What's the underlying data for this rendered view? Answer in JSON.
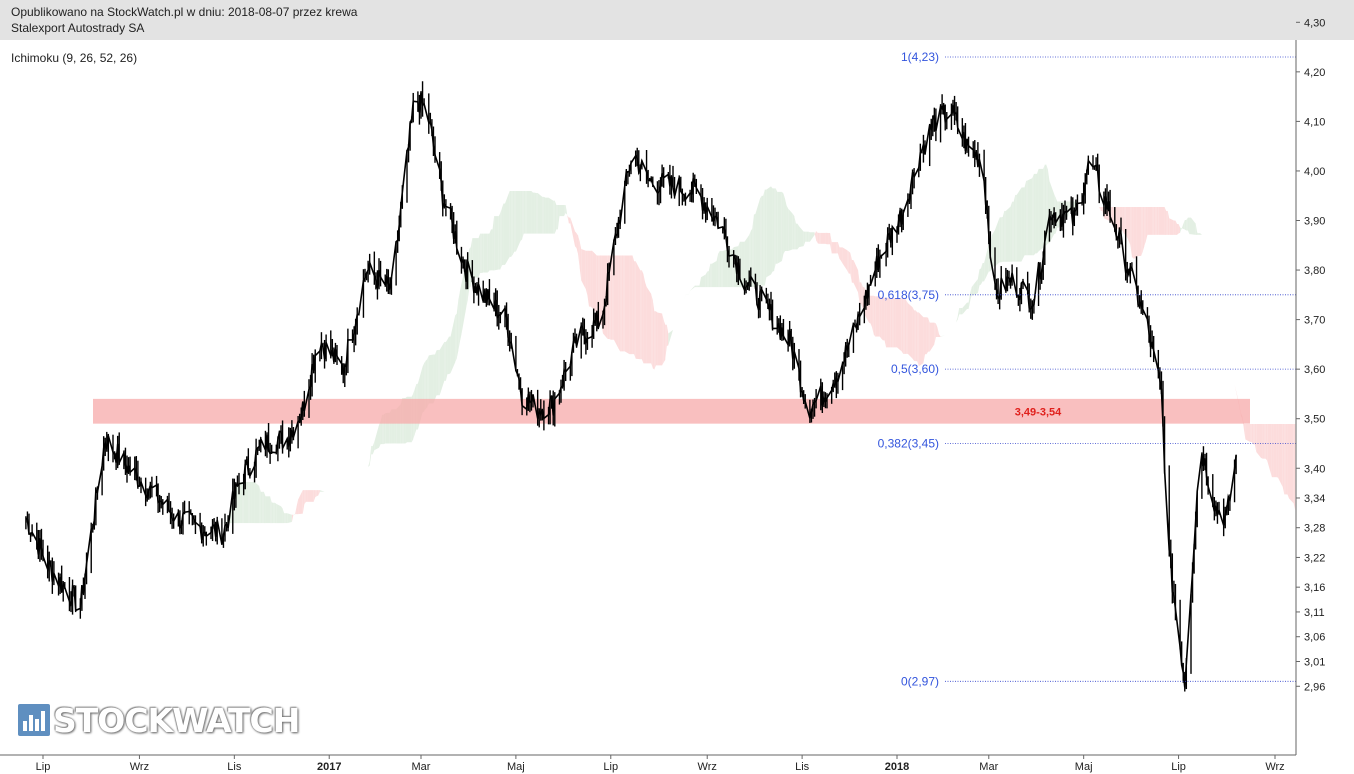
{
  "header": {
    "line1": "Opublikowano na StockWatch.pl w dniu: 2018-08-07 przez krewa",
    "line2": "Stalexport Autostrady SA"
  },
  "indicator": "Ichimoku (9, 26, 52, 26)",
  "logo": "STOCKWATCH",
  "colors": {
    "price": "#000000",
    "cloud_bull": "#e3efe3",
    "cloud_bear": "#fcdcdc",
    "zone": "#f7a9a9",
    "fib_line": "#3344cc",
    "fib_text": "#3355dd",
    "zone_text": "#e0201c"
  },
  "chart_data": {
    "type": "line",
    "title": "Stalexport Autostrady SA",
    "xlabel": "",
    "ylabel": "",
    "ylim": [
      2.93,
      4.31
    ],
    "grid": false,
    "x_tick_labels": [
      "Lip",
      "Wrz",
      "Lis",
      "2017",
      "Mar",
      "Maj",
      "Lip",
      "Wrz",
      "Lis",
      "2018",
      "Mar",
      "Maj",
      "Lip",
      "Wrz"
    ],
    "y_ticks": [
      "4,30",
      "4,20",
      "4,10",
      "4,00",
      "3,90",
      "3,80",
      "3,70",
      "3,60",
      "3,50",
      "3,40",
      "3,34",
      "3,28",
      "3,22",
      "3,16",
      "3,11",
      "3,06",
      "3,01",
      "2,96"
    ],
    "series": [
      {
        "name": "",
        "x": [
          "2016-06-20",
          "2016-07-05",
          "2016-07-25",
          "2016-08-10",
          "2016-08-25",
          "2016-09-10",
          "2016-09-25",
          "2016-10-10",
          "2016-10-25",
          "2016-11-05",
          "2016-11-20",
          "2016-12-05",
          "2016-12-15",
          "2016-12-25",
          "2017-01-10",
          "2017-01-25",
          "2017-02-10",
          "2017-02-25",
          "2017-03-05",
          "2017-03-15",
          "2017-03-30",
          "2017-04-10",
          "2017-04-25",
          "2017-05-05",
          "2017-05-15",
          "2017-05-25",
          "2017-06-10",
          "2017-06-25",
          "2017-07-05",
          "2017-07-15",
          "2017-07-25",
          "2017-08-10",
          "2017-08-25",
          "2017-09-10",
          "2017-09-25",
          "2017-10-10",
          "2017-10-25",
          "2017-11-05",
          "2017-11-15",
          "2017-11-25",
          "2017-12-05",
          "2017-12-20",
          "2018-01-05",
          "2018-01-15",
          "2018-01-25",
          "2018-02-05",
          "2018-02-15",
          "2018-02-25",
          "2018-03-05",
          "2018-03-15",
          "2018-03-30",
          "2018-04-10",
          "2018-04-25",
          "2018-05-05",
          "2018-05-20",
          "2018-06-01",
          "2018-06-10",
          "2018-06-20",
          "2018-06-25",
          "2018-07-05",
          "2018-07-15",
          "2018-07-25",
          "2018-08-01",
          "2018-08-07"
        ],
        "y": [
          3.3,
          3.2,
          3.12,
          3.46,
          3.4,
          3.35,
          3.3,
          3.28,
          3.27,
          3.38,
          3.45,
          3.46,
          3.52,
          3.66,
          3.6,
          3.8,
          3.76,
          4.15,
          4.12,
          3.95,
          3.8,
          3.75,
          3.7,
          3.55,
          3.52,
          3.53,
          3.66,
          3.7,
          3.88,
          4.04,
          3.98,
          3.97,
          3.96,
          3.89,
          3.78,
          3.72,
          3.65,
          3.52,
          3.55,
          3.6,
          3.68,
          3.82,
          3.92,
          4.03,
          4.1,
          4.12,
          4.05,
          4.02,
          3.75,
          3.78,
          3.74,
          3.92,
          3.9,
          4.02,
          3.9,
          3.78,
          3.7,
          3.55,
          3.22,
          2.97,
          3.45,
          3.32,
          3.3,
          3.42
        ]
      }
    ],
    "zone": {
      "low": 3.49,
      "high": 3.54,
      "label": "3,49-3,54"
    },
    "fibonacci": [
      {
        "label": "1(4,23)",
        "value": 4.23
      },
      {
        "label": "0,618(3,75)",
        "value": 3.75
      },
      {
        "label": "0,5(3,60)",
        "value": 3.6
      },
      {
        "label": "0,382(3,45)",
        "value": 3.45
      },
      {
        "label": "0(2,97)",
        "value": 2.97
      }
    ]
  }
}
